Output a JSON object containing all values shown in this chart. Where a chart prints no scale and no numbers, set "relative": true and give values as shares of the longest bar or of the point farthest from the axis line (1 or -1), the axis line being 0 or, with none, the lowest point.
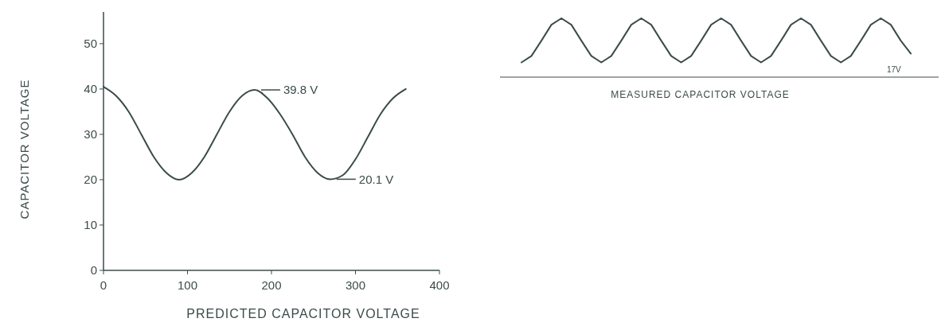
{
  "chart_data": [
    {
      "type": "line",
      "xlabel": "PREDICTED CAPACITOR VOLTAGE",
      "ylabel": "CAPACITOR VOLTAGE",
      "color": "#3c4b4b",
      "x": [
        0,
        15,
        30,
        45,
        60,
        75,
        90,
        105,
        120,
        135,
        150,
        165,
        180,
        195,
        210,
        225,
        240,
        255,
        270,
        285,
        300,
        315,
        330,
        345,
        360
      ],
      "values": [
        40.5,
        38.5,
        35,
        30,
        25,
        21.5,
        20,
        21.5,
        25,
        30,
        35,
        38.5,
        39.8,
        38,
        34.5,
        30,
        25,
        21.5,
        20.1,
        21,
        24.5,
        29.5,
        34.5,
        38,
        40
      ],
      "xlim": [
        0,
        400
      ],
      "ylim": [
        0,
        57
      ],
      "xticks": [
        0,
        100,
        200,
        300,
        400
      ],
      "yticks": [
        0,
        10,
        20,
        30,
        40,
        50
      ],
      "annotations": [
        {
          "text": "39.8 V",
          "x": 180,
          "y": 39.8
        },
        {
          "text": "20.1 V",
          "x": 270,
          "y": 20.1
        }
      ]
    },
    {
      "type": "line",
      "relative": true,
      "xlabel": "MEASURED CAPACITOR VOLTAGE",
      "color": "#3c4b4b",
      "categories": [
        null,
        null,
        null,
        null,
        null,
        null,
        null,
        null,
        null,
        null,
        null,
        null,
        null,
        null,
        null,
        null,
        null,
        null,
        null,
        null,
        null,
        null,
        null,
        null,
        null,
        null,
        null,
        null,
        null,
        null,
        null,
        null,
        null,
        null,
        null,
        null,
        null,
        null,
        null,
        null
      ],
      "values": [
        0.25,
        0.36,
        0.62,
        0.89,
        1,
        0.89,
        0.62,
        0.36,
        0.25,
        0.36,
        0.62,
        0.89,
        1,
        0.89,
        0.62,
        0.36,
        0.25,
        0.36,
        0.62,
        0.89,
        1,
        0.89,
        0.62,
        0.36,
        0.25,
        0.36,
        0.62,
        0.89,
        1,
        0.89,
        0.62,
        0.36,
        0.25,
        0.36,
        0.62,
        0.89,
        1,
        0.89,
        0.62,
        0.4
      ],
      "annotations": [
        "17V"
      ]
    }
  ]
}
